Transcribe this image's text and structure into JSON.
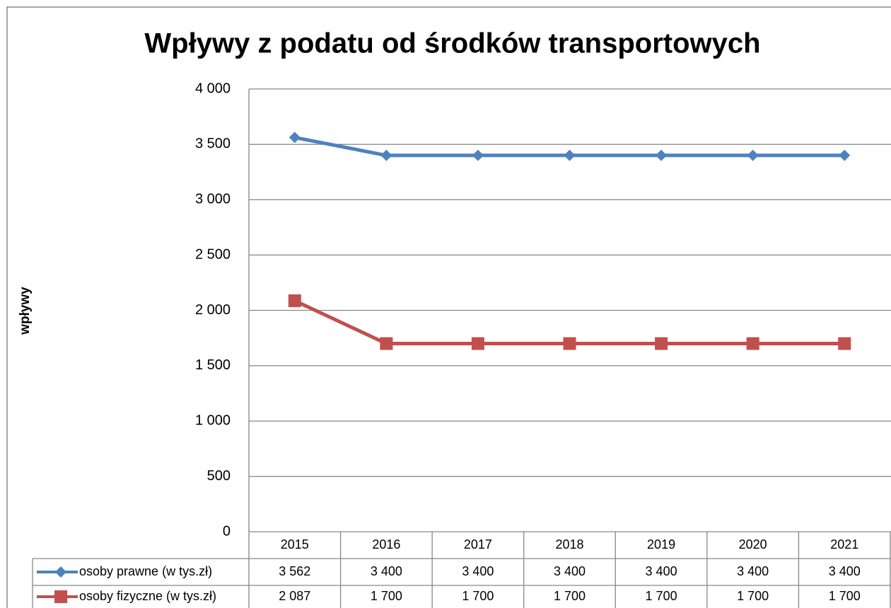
{
  "chart_data": {
    "type": "line",
    "title": "Wpływy z podatu od środków transportowych",
    "y_label": "wpływy",
    "categories": [
      "2015",
      "2016",
      "2017",
      "2018",
      "2019",
      "2020",
      "2021"
    ],
    "series": [
      {
        "name": "osoby prawne (w tys.zł)",
        "color": "#4f81bd",
        "marker": "diamond",
        "values": [
          3562,
          3400,
          3400,
          3400,
          3400,
          3400,
          3400
        ],
        "value_labels": [
          "3 562",
          "3 400",
          "3 400",
          "3 400",
          "3 400",
          "3 400",
          "3 400"
        ]
      },
      {
        "name": "osoby fizyczne (w tys.zł)",
        "color": "#c0504d",
        "marker": "square",
        "values": [
          2087,
          1700,
          1700,
          1700,
          1700,
          1700,
          1700
        ],
        "value_labels": [
          "2 087",
          "1 700",
          "1 700",
          "1 700",
          "1 700",
          "1 700",
          "1 700"
        ]
      }
    ],
    "ylim": [
      0,
      4000
    ],
    "yticks": [
      0,
      500,
      {
        "value": 1000,
        "label": "1 000"
      },
      {
        "value": 1500,
        "label": "1 500"
      },
      {
        "value": 2000,
        "label": "2 000"
      },
      {
        "value": 2500,
        "label": "2 500"
      },
      {
        "value": 3000,
        "label": "3 000"
      },
      {
        "value": 3500,
        "label": "3 500"
      },
      {
        "value": 4000,
        "label": "4 000"
      }
    ],
    "grid": true
  }
}
